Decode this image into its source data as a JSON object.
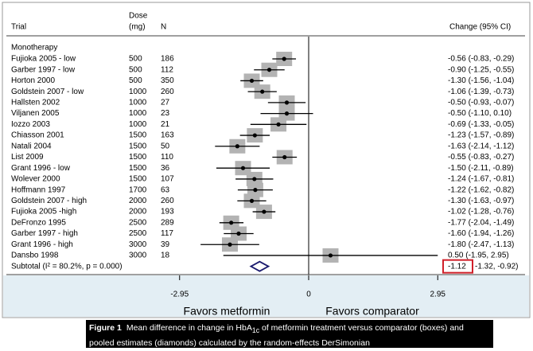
{
  "chart_data": {
    "type": "forest",
    "header": {
      "trial": "Trial",
      "dose": [
        "Dose",
        "(mg)"
      ],
      "n": "N",
      "change": "Change (95% CI)"
    },
    "group": "Monotherapy",
    "trials": [
      "Fujioka 2005 - low",
      "Garber 1997 - low",
      "Horton 2000",
      "Goldstein 2007 - low",
      "Hallsten 2002",
      "Viljanen 2005",
      "Iozzo 2003",
      "Chiasson 2001",
      "Natali 2004",
      "List 2009",
      "Grant 1996 - low",
      "Wolever 2000",
      "Hoffmann 1997",
      "Goldstein 2007 - high",
      "Fujioka 2005 -high",
      "DeFronzo 1995",
      "Garber 1997 - high",
      "Grant 1996 - high",
      "Dansbo 1998"
    ],
    "doses": [
      500,
      500,
      500,
      1000,
      1000,
      1000,
      1000,
      1500,
      1500,
      1500,
      1500,
      1500,
      1700,
      2000,
      2000,
      2500,
      2500,
      3000,
      3000
    ],
    "n": [
      186,
      112,
      350,
      260,
      27,
      23,
      21,
      163,
      50,
      110,
      36,
      107,
      63,
      260,
      193,
      289,
      117,
      39,
      18
    ],
    "values": [
      -0.56,
      -0.9,
      -1.3,
      -1.06,
      -0.5,
      -0.5,
      -0.69,
      -1.23,
      -1.63,
      -0.55,
      -1.5,
      -1.24,
      -1.22,
      -1.3,
      -1.02,
      -1.77,
      -1.6,
      -1.8,
      0.5
    ],
    "lower": [
      -0.83,
      -1.25,
      -1.56,
      -1.39,
      -0.93,
      -1.1,
      -1.33,
      -1.57,
      -2.14,
      -0.83,
      -2.11,
      -1.67,
      -1.62,
      -1.63,
      -1.28,
      -2.04,
      -1.94,
      -2.47,
      -1.95
    ],
    "upper": [
      -0.29,
      -0.55,
      -1.04,
      -0.73,
      -0.07,
      0.1,
      -0.05,
      -0.89,
      -1.12,
      -0.27,
      -0.89,
      -0.81,
      -0.82,
      -0.97,
      -0.76,
      -1.49,
      -1.26,
      -1.13,
      2.95
    ],
    "value_labels": [
      "-0.56 (-0.83, -0.29)",
      "-0.90 (-1.25, -0.55)",
      "-1.30 (-1.56, -1.04)",
      "-1.06 (-1.39, -0.73)",
      "-0.50 (-0.93, -0.07)",
      "-0.50 (-1.10, 0.10)",
      "-0.69 (-1.33, -0.05)",
      "-1.23 (-1.57, -0.89)",
      "-1.63 (-2.14, -1.12)",
      "-0.55 (-0.83, -0.27)",
      "-1.50 (-2.11, -0.89)",
      "-1.24 (-1.67, -0.81)",
      "-1.22 (-1.62, -0.82)",
      "-1.30 (-1.63, -0.97)",
      "-1.02 (-1.28, -0.76)",
      "-1.77 (-2.04, -1.49)",
      "-1.60 (-1.94, -1.26)",
      "-1.80 (-2.47, -1.13)",
      "0.50 (-1.95, 2.95)"
    ],
    "box_color": "#b3b3b3",
    "subtotal": {
      "label": "Subtotal  (I² = 80.2%, p = 0.000)",
      "value": -1.12,
      "lower": -1.32,
      "upper": -0.92,
      "value_label": "-1.12",
      "ci_label": "-1.32, -0.92)",
      "color": "#1a1a6e",
      "highlight_color": "#d0202a"
    },
    "xlim": [
      -3,
      3
    ],
    "xticks": [
      -2.95,
      0,
      2.95
    ],
    "x_label_left": "Favors metformin",
    "x_label_right": "Favors comparator",
    "caption": {
      "label": "Figure 1",
      "text_before": "Mean difference in change in HbA",
      "subscript": "1c",
      "text_after": " of metformin treatment versus comparator (boxes) and pooled estimates (diamonds) calculated by the random-effects DerSimonian"
    }
  }
}
